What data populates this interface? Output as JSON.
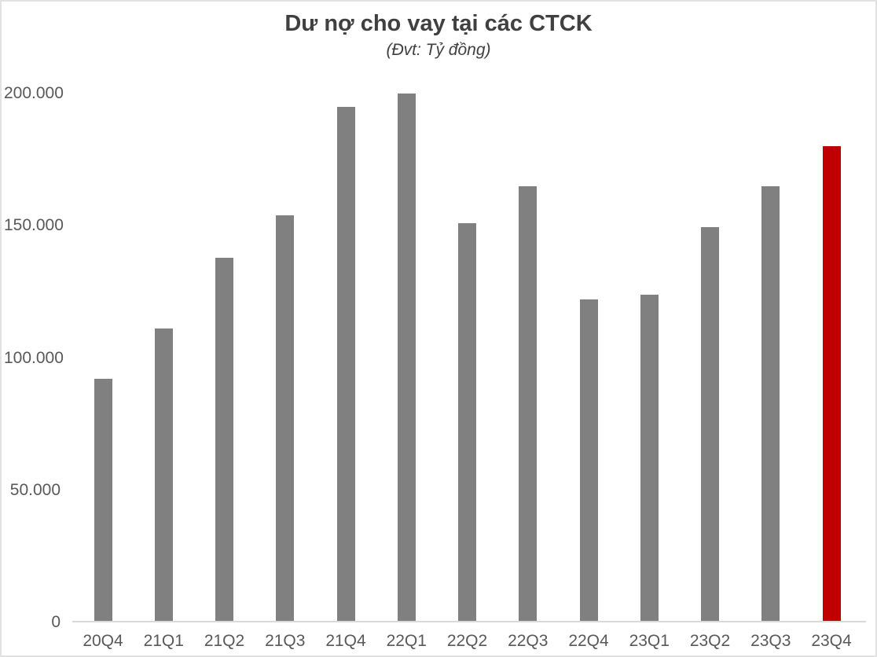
{
  "header": {
    "title": "Dư nợ cho vay tại các CTCK",
    "subtitle": "(Đvt: Tỷ đồng)"
  },
  "colors": {
    "bar_default": "#808080",
    "bar_highlight": "#C00000",
    "title_text": "#404040",
    "axis_text": "#595959",
    "axis_line": "#D9D9D9",
    "frame_border": "#E2E2E2",
    "background": "#FFFFFF"
  },
  "chart_data": {
    "type": "bar",
    "title": "Dư nợ cho vay tại các CTCK",
    "subtitle": "(Đvt: Tỷ đồng)",
    "unit": "Tỷ đồng",
    "categories": [
      "20Q4",
      "21Q1",
      "21Q2",
      "21Q3",
      "21Q4",
      "22Q1",
      "22Q2",
      "22Q3",
      "22Q4",
      "23Q1",
      "23Q2",
      "23Q3",
      "23Q4"
    ],
    "values": [
      92000,
      111000,
      138000,
      154000,
      195000,
      200000,
      151000,
      165000,
      122000,
      124000,
      149500,
      165000,
      180000
    ],
    "highlight_category": "23Q4",
    "highlight_index": 12,
    "xlabel": "",
    "ylabel": "",
    "ylim": [
      0,
      200000
    ],
    "yticks": [
      {
        "value": 0,
        "label": "0"
      },
      {
        "value": 50000,
        "label": "50.000"
      },
      {
        "value": 100000,
        "label": "100.000"
      },
      {
        "value": 150000,
        "label": "150.000"
      },
      {
        "value": 200000,
        "label": "200.000"
      }
    ],
    "grid": false,
    "legend_position": "none"
  }
}
